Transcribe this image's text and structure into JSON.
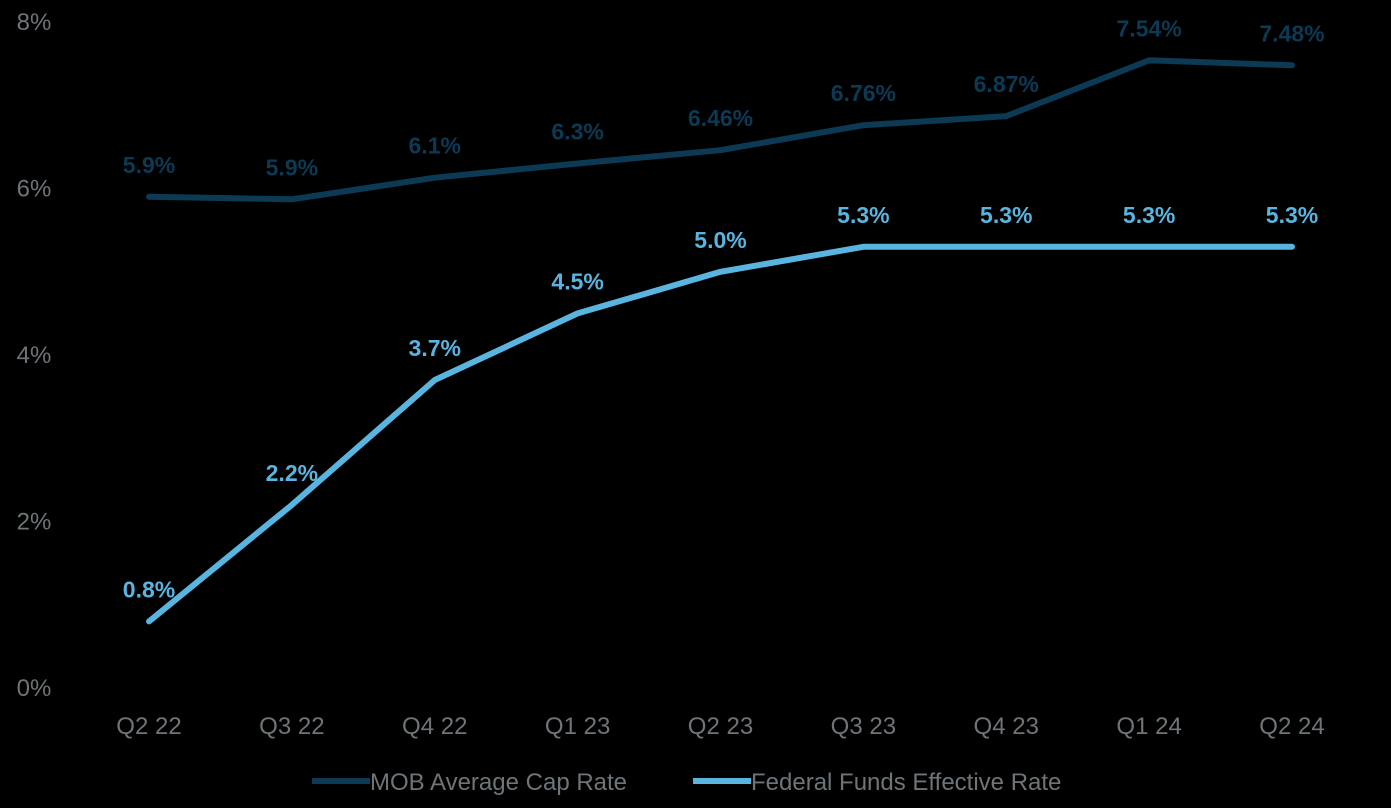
{
  "chart_data": {
    "type": "line",
    "title": "",
    "xlabel": "",
    "ylabel": "",
    "categories": [
      "Q2 22",
      "Q3 22",
      "Q4 22",
      "Q1 23",
      "Q2 23",
      "Q3 23",
      "Q4 23",
      "Q1 24",
      "Q2 24"
    ],
    "ylim": [
      0,
      8
    ],
    "yticks": [
      0,
      2,
      4,
      6,
      8
    ],
    "ytick_labels": [
      "0%",
      "2%",
      "4%",
      "6%",
      "8%"
    ],
    "grid": false,
    "legend_position": "bottom-center",
    "series": [
      {
        "name": "MOB Average Cap Rate",
        "color": "#0c3a54",
        "values": [
          5.9,
          5.87,
          6.13,
          6.3,
          6.46,
          6.76,
          6.87,
          7.54,
          7.48
        ],
        "labels": [
          "5.9%",
          "5.9%",
          "6.1%",
          "6.3%",
          "6.46%",
          "6.76%",
          "6.87%",
          "7.54%",
          "7.48%"
        ]
      },
      {
        "name": "Federal Funds Effective Rate",
        "color": "#5ab4e0",
        "values": [
          0.8,
          2.2,
          3.7,
          4.5,
          5.0,
          5.3,
          5.3,
          5.3,
          5.3
        ],
        "labels": [
          "0.8%",
          "2.2%",
          "3.7%",
          "4.5%",
          "5.0%",
          "5.3%",
          "5.3%",
          "5.3%",
          "5.3%"
        ]
      }
    ]
  }
}
